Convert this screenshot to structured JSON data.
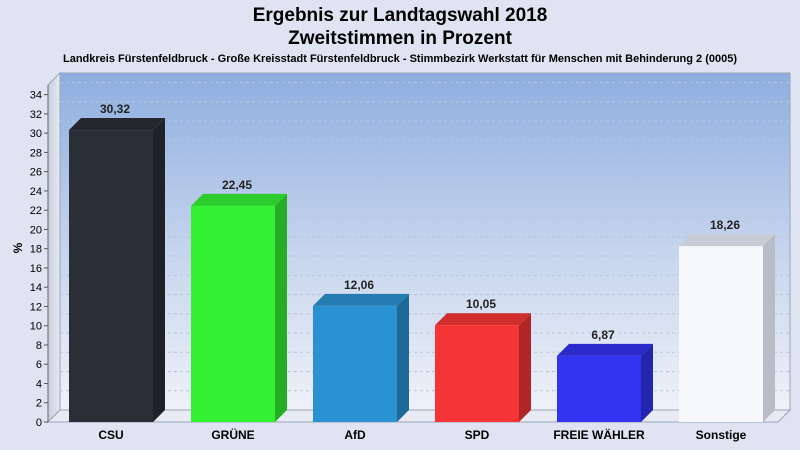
{
  "title_line1": "Ergebnis zur Landtagswahl 2018",
  "title_line2": "Zweitstimmen in Prozent",
  "subtitle": "Landkreis Fürstenfeldbruck - Große Kreisstadt Fürstenfeldbruck - Stimmbezirk Werkstatt für Menschen mit Behinderung 2 (0005)",
  "chart_data": {
    "type": "bar",
    "title": "Ergebnis zur Landtagswahl 2018 Zweitstimmen in Prozent",
    "subtitle": "Landkreis Fürstenfeldbruck - Große Kreisstadt Fürstenfeldbruck - Stimmbezirk Werkstatt für Menschen mit Behinderung 2 (0005)",
    "xlabel": "",
    "ylabel": "%",
    "ylim": [
      0,
      35
    ],
    "yticks": [
      0,
      2,
      4,
      6,
      8,
      10,
      12,
      14,
      16,
      18,
      20,
      22,
      24,
      26,
      28,
      30,
      32,
      34
    ],
    "categories": [
      "CSU",
      "GRÜNE",
      "AfD",
      "SPD",
      "FREIE WÄHLER",
      "Sonstige"
    ],
    "values": [
      30.32,
      22.45,
      12.06,
      10.05,
      6.87,
      18.26
    ],
    "value_labels": [
      "30,32",
      "22,45",
      "12,06",
      "10,05",
      "6,87",
      "18,26"
    ],
    "colors": [
      "#2a2e36",
      "#33f033",
      "#2a92d2",
      "#f53535",
      "#3333f0",
      "#f7f8fc"
    ],
    "grid": true,
    "legend": "none"
  }
}
